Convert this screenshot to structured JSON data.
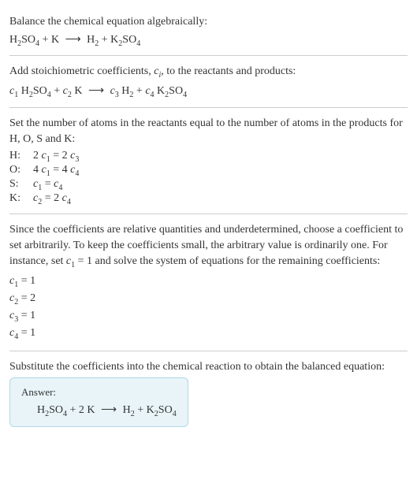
{
  "colors": {
    "text": "#333333",
    "background": "#ffffff",
    "divider": "#cccccc",
    "answer_bg": "#e8f4f8",
    "answer_border": "#b0d8e8"
  },
  "typography": {
    "body_fontsize": 14,
    "sub_fontsize": 10,
    "answer_label_fontsize": 13
  },
  "section1": {
    "instruction": "Balance the chemical equation algebraically:"
  },
  "section2": {
    "instruction_prefix": "Add stoichiometric coefficients, ",
    "instruction_var": "c",
    "instruction_sub": "i",
    "instruction_suffix": ", to the reactants and products:"
  },
  "section3": {
    "instruction": "Set the number of atoms in the reactants equal to the number of atoms in the products for H, O, S and K:",
    "atoms": [
      {
        "label": "H:",
        "lhs_coeff": "2",
        "lhs_var": "c",
        "lhs_sub": "1",
        "eq": " = ",
        "rhs_coeff": "2",
        "rhs_var": "c",
        "rhs_sub": "3"
      },
      {
        "label": "O:",
        "lhs_coeff": "4",
        "lhs_var": "c",
        "lhs_sub": "1",
        "eq": " = ",
        "rhs_coeff": "4",
        "rhs_var": "c",
        "rhs_sub": "4"
      },
      {
        "label": "S:",
        "lhs_coeff": "",
        "lhs_var": "c",
        "lhs_sub": "1",
        "eq": " = ",
        "rhs_coeff": "",
        "rhs_var": "c",
        "rhs_sub": "4"
      },
      {
        "label": "K:",
        "lhs_coeff": "",
        "lhs_var": "c",
        "lhs_sub": "2",
        "eq": " = ",
        "rhs_coeff": "2",
        "rhs_var": "c",
        "rhs_sub": "4"
      }
    ]
  },
  "section4": {
    "instruction_part1": "Since the coefficients are relative quantities and underdetermined, choose a coefficient to set arbitrarily. To keep the coefficients small, the arbitrary value is ordinarily one. For instance, set ",
    "set_var": "c",
    "set_sub": "1",
    "instruction_part2": " = 1 and solve the system of equations for the remaining coefficients:",
    "coefficients": [
      {
        "var": "c",
        "sub": "1",
        "val": " = 1"
      },
      {
        "var": "c",
        "sub": "2",
        "val": " = 2"
      },
      {
        "var": "c",
        "sub": "3",
        "val": " = 1"
      },
      {
        "var": "c",
        "sub": "4",
        "val": " = 1"
      }
    ]
  },
  "section5": {
    "instruction": "Substitute the coefficients into the chemical reaction to obtain the balanced equation:",
    "answer_label": "Answer:"
  },
  "chem": {
    "H": "H",
    "SO": "SO",
    "K": "K",
    "plus": " + ",
    "plus2K": " + 2 K ",
    "arrow": "⟶",
    "two": "2",
    "four": "4",
    "space": " "
  },
  "stoich": {
    "c": "c",
    "s1": "1",
    "s2": "2",
    "s3": "3",
    "s4": "4"
  }
}
